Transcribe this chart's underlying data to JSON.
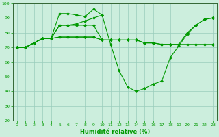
{
  "xlabel": "Humidité relative (%)",
  "bg_color": "#cceedd",
  "grid_color": "#99ccbb",
  "line_color": "#009900",
  "xlim": [
    -0.5,
    23.5
  ],
  "ylim": [
    20,
    100
  ],
  "xticks": [
    0,
    1,
    2,
    3,
    4,
    5,
    6,
    7,
    8,
    9,
    10,
    11,
    12,
    13,
    14,
    15,
    16,
    17,
    18,
    19,
    20,
    21,
    22,
    23
  ],
  "yticks": [
    20,
    30,
    40,
    50,
    60,
    70,
    80,
    90,
    100
  ],
  "line1": [
    70,
    70,
    73,
    76,
    76,
    93,
    93,
    92,
    91,
    96,
    92,
    null,
    null,
    null,
    null,
    null,
    null,
    null,
    null,
    null,
    null,
    null,
    null,
    null
  ],
  "line2": [
    70,
    70,
    73,
    76,
    76,
    85,
    85,
    86,
    88,
    90,
    92,
    72,
    54,
    43,
    40,
    42,
    45,
    47,
    63,
    71,
    79,
    85,
    89,
    90
  ],
  "line3": [
    70,
    70,
    73,
    76,
    76,
    77,
    77,
    77,
    77,
    77,
    75,
    75,
    75,
    75,
    75,
    73,
    73,
    72,
    72,
    72,
    72,
    72,
    72,
    72
  ],
  "line4": [
    70,
    70,
    73,
    76,
    76,
    77,
    77,
    77,
    77,
    77,
    75,
    75,
    75,
    75,
    75,
    73,
    73,
    72,
    72,
    72,
    80,
    85,
    89,
    90
  ],
  "line5": [
    70,
    70,
    73,
    76,
    76,
    85,
    85,
    85,
    85,
    85,
    75,
    75,
    null,
    null,
    null,
    null,
    null,
    null,
    null,
    null,
    null,
    null,
    null,
    null
  ]
}
